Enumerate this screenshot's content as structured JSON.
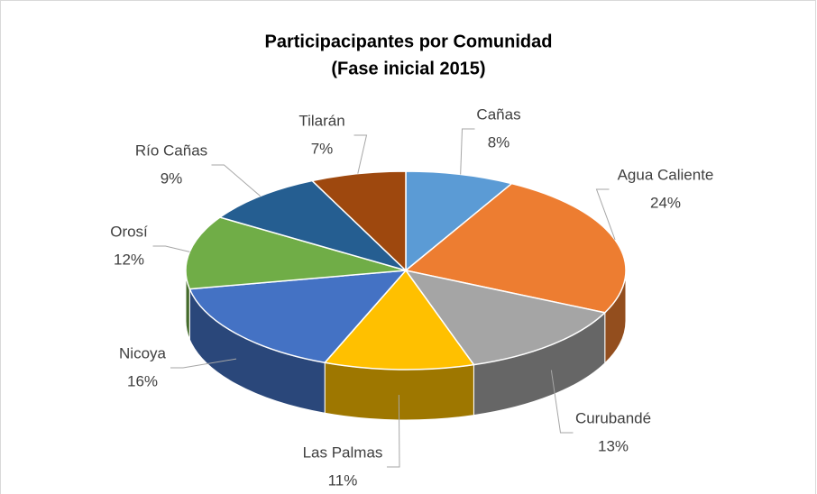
{
  "chart_data": {
    "type": "pie3d",
    "title": "Participacipantes por Comunidad",
    "subtitle": "(Fase inicial 2015)",
    "categories": [
      "Cañas",
      "Agua Caliente",
      "Curubandé",
      "Las Palmas",
      "Nicoya",
      "Orosí",
      "Río Cañas",
      "Tilarán"
    ],
    "values": [
      8,
      24,
      13,
      11,
      16,
      12,
      9,
      7
    ],
    "value_labels": [
      "8%",
      "24%",
      "13%",
      "11%",
      "16%",
      "12%",
      "9%",
      "7%"
    ],
    "colors": [
      "#5b9bd5",
      "#ed7d31",
      "#a5a5a5",
      "#ffc000",
      "#4472c4",
      "#70ad47",
      "#255e91",
      "#9e480e"
    ]
  }
}
